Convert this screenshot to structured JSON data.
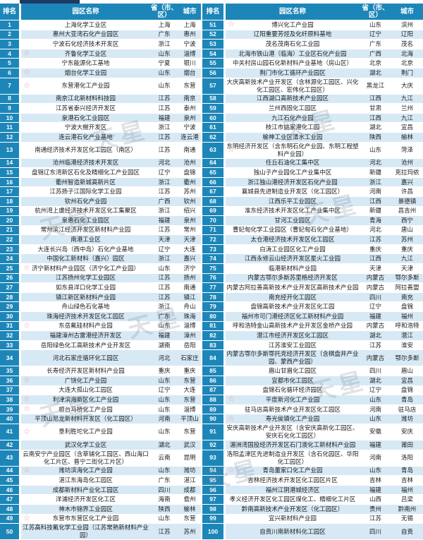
{
  "header": {
    "rank": "排名",
    "park_name": "园区名称",
    "province": "省（市、区）",
    "city": "城市"
  },
  "watermark": {
    "text": "天星"
  },
  "colors": {
    "header_bg": "#1d86b8",
    "rank_bg": "#1d86b8",
    "row_bg": "#ffffff",
    "row_alt_bg": "#d7e9f5",
    "star": "#f19aa5",
    "strip": "#1b3a66"
  },
  "left_rows": [
    {
      "rank": "1",
      "star": false,
      "name": "上海化学工业区",
      "province": "上海",
      "city": "上海"
    },
    {
      "rank": "2",
      "star": false,
      "name": "惠州大亚湾石化产业园区",
      "province": "广东",
      "city": "惠州"
    },
    {
      "rank": "3",
      "star": false,
      "name": "宁波石化经济技术开发区",
      "province": "浙江",
      "city": "宁波"
    },
    {
      "rank": "4",
      "star": true,
      "name": "齐鲁化学工业区",
      "province": "山东",
      "city": "淄博"
    },
    {
      "rank": "5",
      "star": false,
      "name": "宁东能源化工基地",
      "province": "宁夏",
      "city": "银川"
    },
    {
      "rank": "6",
      "star": true,
      "name": "烟台化学工业园",
      "province": "山东",
      "city": "烟台"
    },
    {
      "rank": "7",
      "star": true,
      "name": "东营港化工产业园",
      "province": "山东",
      "city": "东营"
    },
    {
      "rank": "8",
      "star": false,
      "name": "南京江北新材料科技园",
      "province": "江苏",
      "city": "南京"
    },
    {
      "rank": "9",
      "star": false,
      "name": "江苏省泰兴经济开发区",
      "province": "江苏",
      "city": "泰州"
    },
    {
      "rank": "10",
      "star": false,
      "name": "泉港石化工业园区",
      "province": "福建",
      "city": "泉州"
    },
    {
      "rank": "11",
      "star": false,
      "name": "宁波大榭开发区",
      "province": "浙江",
      "city": "宁波"
    },
    {
      "rank": "12",
      "star": false,
      "name": "连云港石化产业基地",
      "province": "江苏",
      "city": "连云港"
    },
    {
      "rank": "13",
      "star": false,
      "name": "南通经济技术开发区化工园区（南区）",
      "province": "江苏",
      "city": "南通"
    },
    {
      "rank": "14",
      "star": false,
      "name": "沧州临港经济技术开发区",
      "province": "河北",
      "city": "沧州"
    },
    {
      "rank": "15",
      "star": false,
      "name": "盘锦辽东湾新区石化及精细化工产业园区",
      "province": "辽宁",
      "city": "盘锦"
    },
    {
      "rank": "16",
      "star": false,
      "name": "衢州智造新城高新片区",
      "province": "浙江",
      "city": "衢州"
    },
    {
      "rank": "17",
      "star": false,
      "name": "江苏扬子江国际化学工业园",
      "province": "江苏",
      "city": "苏州"
    },
    {
      "rank": "18",
      "star": false,
      "name": "钦州石化产业园",
      "province": "广西",
      "city": "钦州"
    },
    {
      "rank": "19",
      "star": false,
      "name": "杭州湾上虞经济技术开发区化工集聚区",
      "province": "浙江",
      "city": "绍兴"
    },
    {
      "rank": "20",
      "star": false,
      "name": "泉惠石化工业园区",
      "province": "福建",
      "city": "泉州"
    },
    {
      "rank": "21",
      "star": false,
      "name": "常州滨江经济开发区新材料产业园",
      "province": "江苏",
      "city": "常州"
    },
    {
      "rank": "22",
      "star": false,
      "name": "南港工业区",
      "province": "天津",
      "city": "天津"
    },
    {
      "rank": "23",
      "star": false,
      "name": "大连长兴岛（西中岛）石化产业基地",
      "province": "辽宁",
      "city": "大连"
    },
    {
      "rank": "24",
      "star": false,
      "name": "中国化工新材料（嘉兴）园区",
      "province": "浙江",
      "city": "嘉兴"
    },
    {
      "rank": "25",
      "star": true,
      "name": "济宁新材料产业园区（济宁化工产业园）",
      "province": "山东",
      "city": "济宁"
    },
    {
      "rank": "26",
      "star": false,
      "name": "江苏扬州化学工业园区",
      "province": "江苏",
      "city": "扬州"
    },
    {
      "rank": "27",
      "star": false,
      "name": "如东县洋口化学工业园",
      "province": "江苏",
      "city": "南通"
    },
    {
      "rank": "28",
      "star": false,
      "name": "镇江新区新材料产业园",
      "province": "江苏",
      "city": "镇江"
    },
    {
      "rank": "29",
      "star": false,
      "name": "舟山绿色石化基地",
      "province": "浙江",
      "city": "舟山"
    },
    {
      "rank": "30",
      "star": false,
      "name": "珠海经济技术开发区化工园区",
      "province": "广东",
      "city": "珠海"
    },
    {
      "rank": "31",
      "star": true,
      "name": "东岳氟硅材料产业园",
      "province": "山东",
      "city": "淄博"
    },
    {
      "rank": "32",
      "star": false,
      "name": "福建漳州古雷港经济开发区",
      "province": "福建",
      "city": "漳州"
    },
    {
      "rank": "33",
      "star": false,
      "name": "岳阳绿色化工高新技术产业开发区",
      "province": "湖南",
      "city": "岳阳"
    },
    {
      "rank": "34",
      "star": false,
      "name": "河北石家庄循环化工园区",
      "province": "河北",
      "city": "石家庄"
    },
    {
      "rank": "35",
      "star": false,
      "name": "长寿经济开发区新材料产业园",
      "province": "重庆",
      "city": "重庆"
    },
    {
      "rank": "36",
      "star": true,
      "name": "广饶化工产业园",
      "province": "山东",
      "city": "东营"
    },
    {
      "rank": "37",
      "star": false,
      "name": "大连大孤山化工园区",
      "province": "辽宁",
      "city": "大连"
    },
    {
      "rank": "38",
      "star": true,
      "name": "利津滨海新区化工产业园",
      "province": "山东",
      "city": "东营"
    },
    {
      "rank": "39",
      "star": true,
      "name": "桓台马桥化工产业园",
      "province": "山东",
      "city": "淄博"
    },
    {
      "rank": "40",
      "star": false,
      "name": "平顶山尼龙新材料开发区（化工园区）",
      "province": "河南",
      "city": "平顶山"
    },
    {
      "rank": "41",
      "star": true,
      "name": "垦利胜坨化工产业园",
      "province": "山东",
      "city": "东营"
    },
    {
      "rank": "42",
      "star": false,
      "name": "武汉化学工业区",
      "province": "湖北",
      "city": "武汉"
    },
    {
      "rank": "43",
      "star": false,
      "name": "云南安宁产业园区（含草铺化工园区、西山海口化工片区、晋宁二街化工片区）",
      "province": "云南",
      "city": "昆明"
    },
    {
      "rank": "44",
      "star": true,
      "name": "潍坊滨海化工产业园",
      "province": "山东",
      "city": "潍坊"
    },
    {
      "rank": "45",
      "star": false,
      "name": "湛江东海岛化工园区",
      "province": "广东",
      "city": "湛江"
    },
    {
      "rank": "46",
      "star": false,
      "name": "成都新材料产业化工园区",
      "province": "四川",
      "city": "成都"
    },
    {
      "rank": "47",
      "star": false,
      "name": "洋浦经济开发区化工区",
      "province": "海南",
      "city": "儋州"
    },
    {
      "rank": "48",
      "star": false,
      "name": "神木市锦界工业园区",
      "province": "陕西",
      "city": "榆林"
    },
    {
      "rank": "49",
      "star": true,
      "name": "东营市东营区化工产业园",
      "province": "山东",
      "city": "东营"
    },
    {
      "rank": "50",
      "star": false,
      "name": "江苏高科技氟化学工业园（江苏常熟新材料产业园）",
      "province": "江苏",
      "city": "苏州"
    }
  ],
  "right_rows": [
    {
      "rank": "51",
      "star": true,
      "name": "博兴化工产业园",
      "province": "山东",
      "city": "滨州"
    },
    {
      "rank": "52",
      "star": false,
      "name": "辽阳重要芳烃及化纤原料基地",
      "province": "辽宁",
      "city": "辽阳"
    },
    {
      "rank": "53",
      "star": false,
      "name": "茂名茂南石化工业园",
      "province": "广东",
      "city": "茂名"
    },
    {
      "rank": "54",
      "star": false,
      "name": "北海市铁山港（临海）工业区石化产业园",
      "province": "广西",
      "city": "北海"
    },
    {
      "rank": "55",
      "star": false,
      "name": "中关村房山园石化新材料产业基地（房山区）",
      "province": "北京",
      "city": "北京"
    },
    {
      "rank": "56",
      "star": false,
      "name": "荆门市化工循环产业园区",
      "province": "湖北",
      "city": "荆门"
    },
    {
      "rank": "57",
      "star": false,
      "name": "大庆高新技术产业开发区（含林源化工园区、兴化化工园区、宏伟化工园区）",
      "province": "黑龙江",
      "city": "大庆"
    },
    {
      "rank": "58",
      "star": false,
      "name": "江西湖口高新技术产业园区",
      "province": "江西",
      "city": "九江"
    },
    {
      "rank": "59",
      "star": false,
      "name": "兰州西固化工园区",
      "province": "甘肃",
      "city": "兰州"
    },
    {
      "rank": "60",
      "star": false,
      "name": "九江石化产业园",
      "province": "江西",
      "city": "九江"
    },
    {
      "rank": "61",
      "star": false,
      "name": "枝江市姚家港化工园",
      "province": "湖北",
      "city": "宜昌"
    },
    {
      "rank": "62",
      "star": false,
      "name": "榆神工业区清水工业园",
      "province": "陕西",
      "city": "榆林"
    },
    {
      "rank": "63",
      "star": true,
      "name": "东明经济开发区（含东明石化产业园、东明工程塑料产业园）",
      "province": "山东",
      "city": "菏泽"
    },
    {
      "rank": "64",
      "star": false,
      "name": "任丘石油化工集中区",
      "province": "河北",
      "city": "沧州"
    },
    {
      "rank": "65",
      "star": false,
      "name": "独山子产业园化工产业集中区",
      "province": "新疆",
      "city": "克拉玛依"
    },
    {
      "rank": "66",
      "star": false,
      "name": "浙江独山港经济开发区石化产业园",
      "province": "浙江",
      "city": "嘉兴"
    },
    {
      "rank": "67",
      "star": false,
      "name": "襄城县先进制造业开发区（化工园区）",
      "province": "河南",
      "city": "许昌"
    },
    {
      "rank": "68",
      "star": false,
      "name": "江西乐平工业园区",
      "province": "江西",
      "city": "景德镇"
    },
    {
      "rank": "69",
      "star": false,
      "name": "准东经济技术开发区化工产业集中区",
      "province": "新疆",
      "city": "昌吉州"
    },
    {
      "rank": "70",
      "star": false,
      "name": "甘河工业园区",
      "province": "青海",
      "city": "西宁"
    },
    {
      "rank": "71",
      "star": false,
      "name": "曹妃甸化学工业园区（曹妃甸石化产业基地）",
      "province": "河北",
      "city": "唐山"
    },
    {
      "rank": "72",
      "star": false,
      "name": "太仓港经济技术开发区化工园区",
      "province": "江苏",
      "city": "苏州"
    },
    {
      "rank": "73",
      "star": false,
      "name": "白涛工业园区化工产业园",
      "province": "重庆",
      "city": "重庆"
    },
    {
      "rank": "74",
      "star": false,
      "name": "江西永修云山经济开发区星火工业园",
      "province": "江西",
      "city": "九江"
    },
    {
      "rank": "75",
      "star": false,
      "name": "临港新材料产业园",
      "province": "天津",
      "city": "天津"
    },
    {
      "rank": "76",
      "star": false,
      "name": "内蒙古鄂尔多斯苏里格经济开发区",
      "province": "内蒙古",
      "city": "鄂尔多斯"
    },
    {
      "rank": "77",
      "star": false,
      "name": "内蒙古阿拉善高新技术产业开发区高新技术产业园",
      "province": "内蒙古",
      "city": "阿拉善盟"
    },
    {
      "rank": "78",
      "star": false,
      "name": "南充经开化工园区",
      "province": "四川",
      "city": "南充"
    },
    {
      "rank": "79",
      "star": false,
      "name": "盘锦高新技术产业开发区化工园",
      "province": "辽宁",
      "city": "盘锦"
    },
    {
      "rank": "80",
      "star": false,
      "name": "福州市可门港经济区化工新材料产业园",
      "province": "福建",
      "city": "福州"
    },
    {
      "rank": "81",
      "star": false,
      "name": "呼和浩特金山高新技术产业开发区金桥产业园",
      "province": "内蒙古",
      "city": "呼和浩特"
    },
    {
      "rank": "82",
      "star": false,
      "name": "潜江市经济开发区化工园区",
      "province": "湖北",
      "city": "潜江"
    },
    {
      "rank": "83",
      "star": false,
      "name": "江苏淮安工业园区",
      "province": "江苏",
      "city": "淮安"
    },
    {
      "rank": "84",
      "star": false,
      "name": "内蒙古鄂尔多斯鄂托克经济开发区（含棋盘井产业园、蒙西产业园）",
      "province": "内蒙古",
      "city": "鄂尔多斯"
    },
    {
      "rank": "85",
      "star": false,
      "name": "眉山甘眉化工园区",
      "province": "四川",
      "city": "眉山"
    },
    {
      "rank": "86",
      "star": false,
      "name": "宜都市化工园区",
      "province": "湖北",
      "city": "宜昌"
    },
    {
      "rank": "87",
      "star": false,
      "name": "盘锦石化循环经济园区",
      "province": "辽宁",
      "city": "盘锦"
    },
    {
      "rank": "88",
      "star": true,
      "name": "平度新河化工产业园",
      "province": "山东",
      "city": "青岛"
    },
    {
      "rank": "89",
      "star": false,
      "name": "驻马店高新技术产业开发区化工园区",
      "province": "河南",
      "city": "驻马店"
    },
    {
      "rank": "90",
      "star": true,
      "name": "寿光侯镇化工产业园",
      "province": "山东",
      "city": "潍坊"
    },
    {
      "rank": "91",
      "star": false,
      "name": "安庆高新技术产业开发区（含安庆高新化工园区、安庆石化化工园区）",
      "province": "安徽",
      "city": "安庆"
    },
    {
      "rank": "92",
      "star": false,
      "name": "湄洲湾国投经济开发区石门澳化工新材料产业园",
      "province": "福建",
      "city": "莆田"
    },
    {
      "rank": "93",
      "star": false,
      "name": "洛阳孟津区先进制造业开发区（含石化园区、华阳化工园区）",
      "province": "河南",
      "city": "洛阳"
    },
    {
      "rank": "94",
      "star": true,
      "name": "青岛董家口化工产业园",
      "province": "山东",
      "city": "青岛"
    },
    {
      "rank": "95",
      "star": false,
      "name": "吉林经济技术开发区化工园区片区",
      "province": "吉林",
      "city": "吉林"
    },
    {
      "rank": "96",
      "star": false,
      "name": "福州江阴港城经济区",
      "province": "福建",
      "city": "福州"
    },
    {
      "rank": "97",
      "star": false,
      "name": "孝义经济开发区化工园区煤化工、精细化工片区",
      "province": "山西",
      "city": "吕梁"
    },
    {
      "rank": "98",
      "star": false,
      "name": "黔南高新技术产业开发区（化工园区）",
      "province": "贵州",
      "city": "黔南州"
    },
    {
      "rank": "99",
      "star": false,
      "name": "宜兴新材料产业园",
      "province": "江苏",
      "city": "无锡"
    },
    {
      "rank": "100",
      "star": false,
      "name": "自贡川南新材料化工园区",
      "province": "四川",
      "city": "自贡"
    }
  ]
}
